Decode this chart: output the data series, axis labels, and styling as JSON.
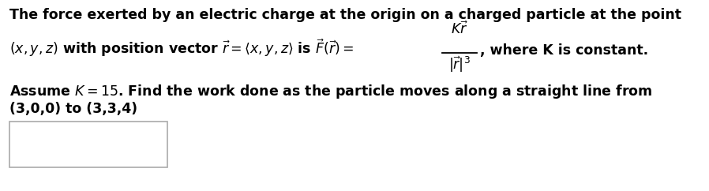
{
  "background_color": "#ffffff",
  "line1": "The force exerted by an electric charge at the origin on a charged particle at the point",
  "line3_text": "Assume $K = 15$. Find the work done as the particle moves along a straight line from",
  "line4_text": "(3,0,0) to (3,3,4)",
  "font_size": 12.5,
  "text_color": "#000000",
  "font_weight": "bold",
  "font_family": "DejaVu Sans"
}
